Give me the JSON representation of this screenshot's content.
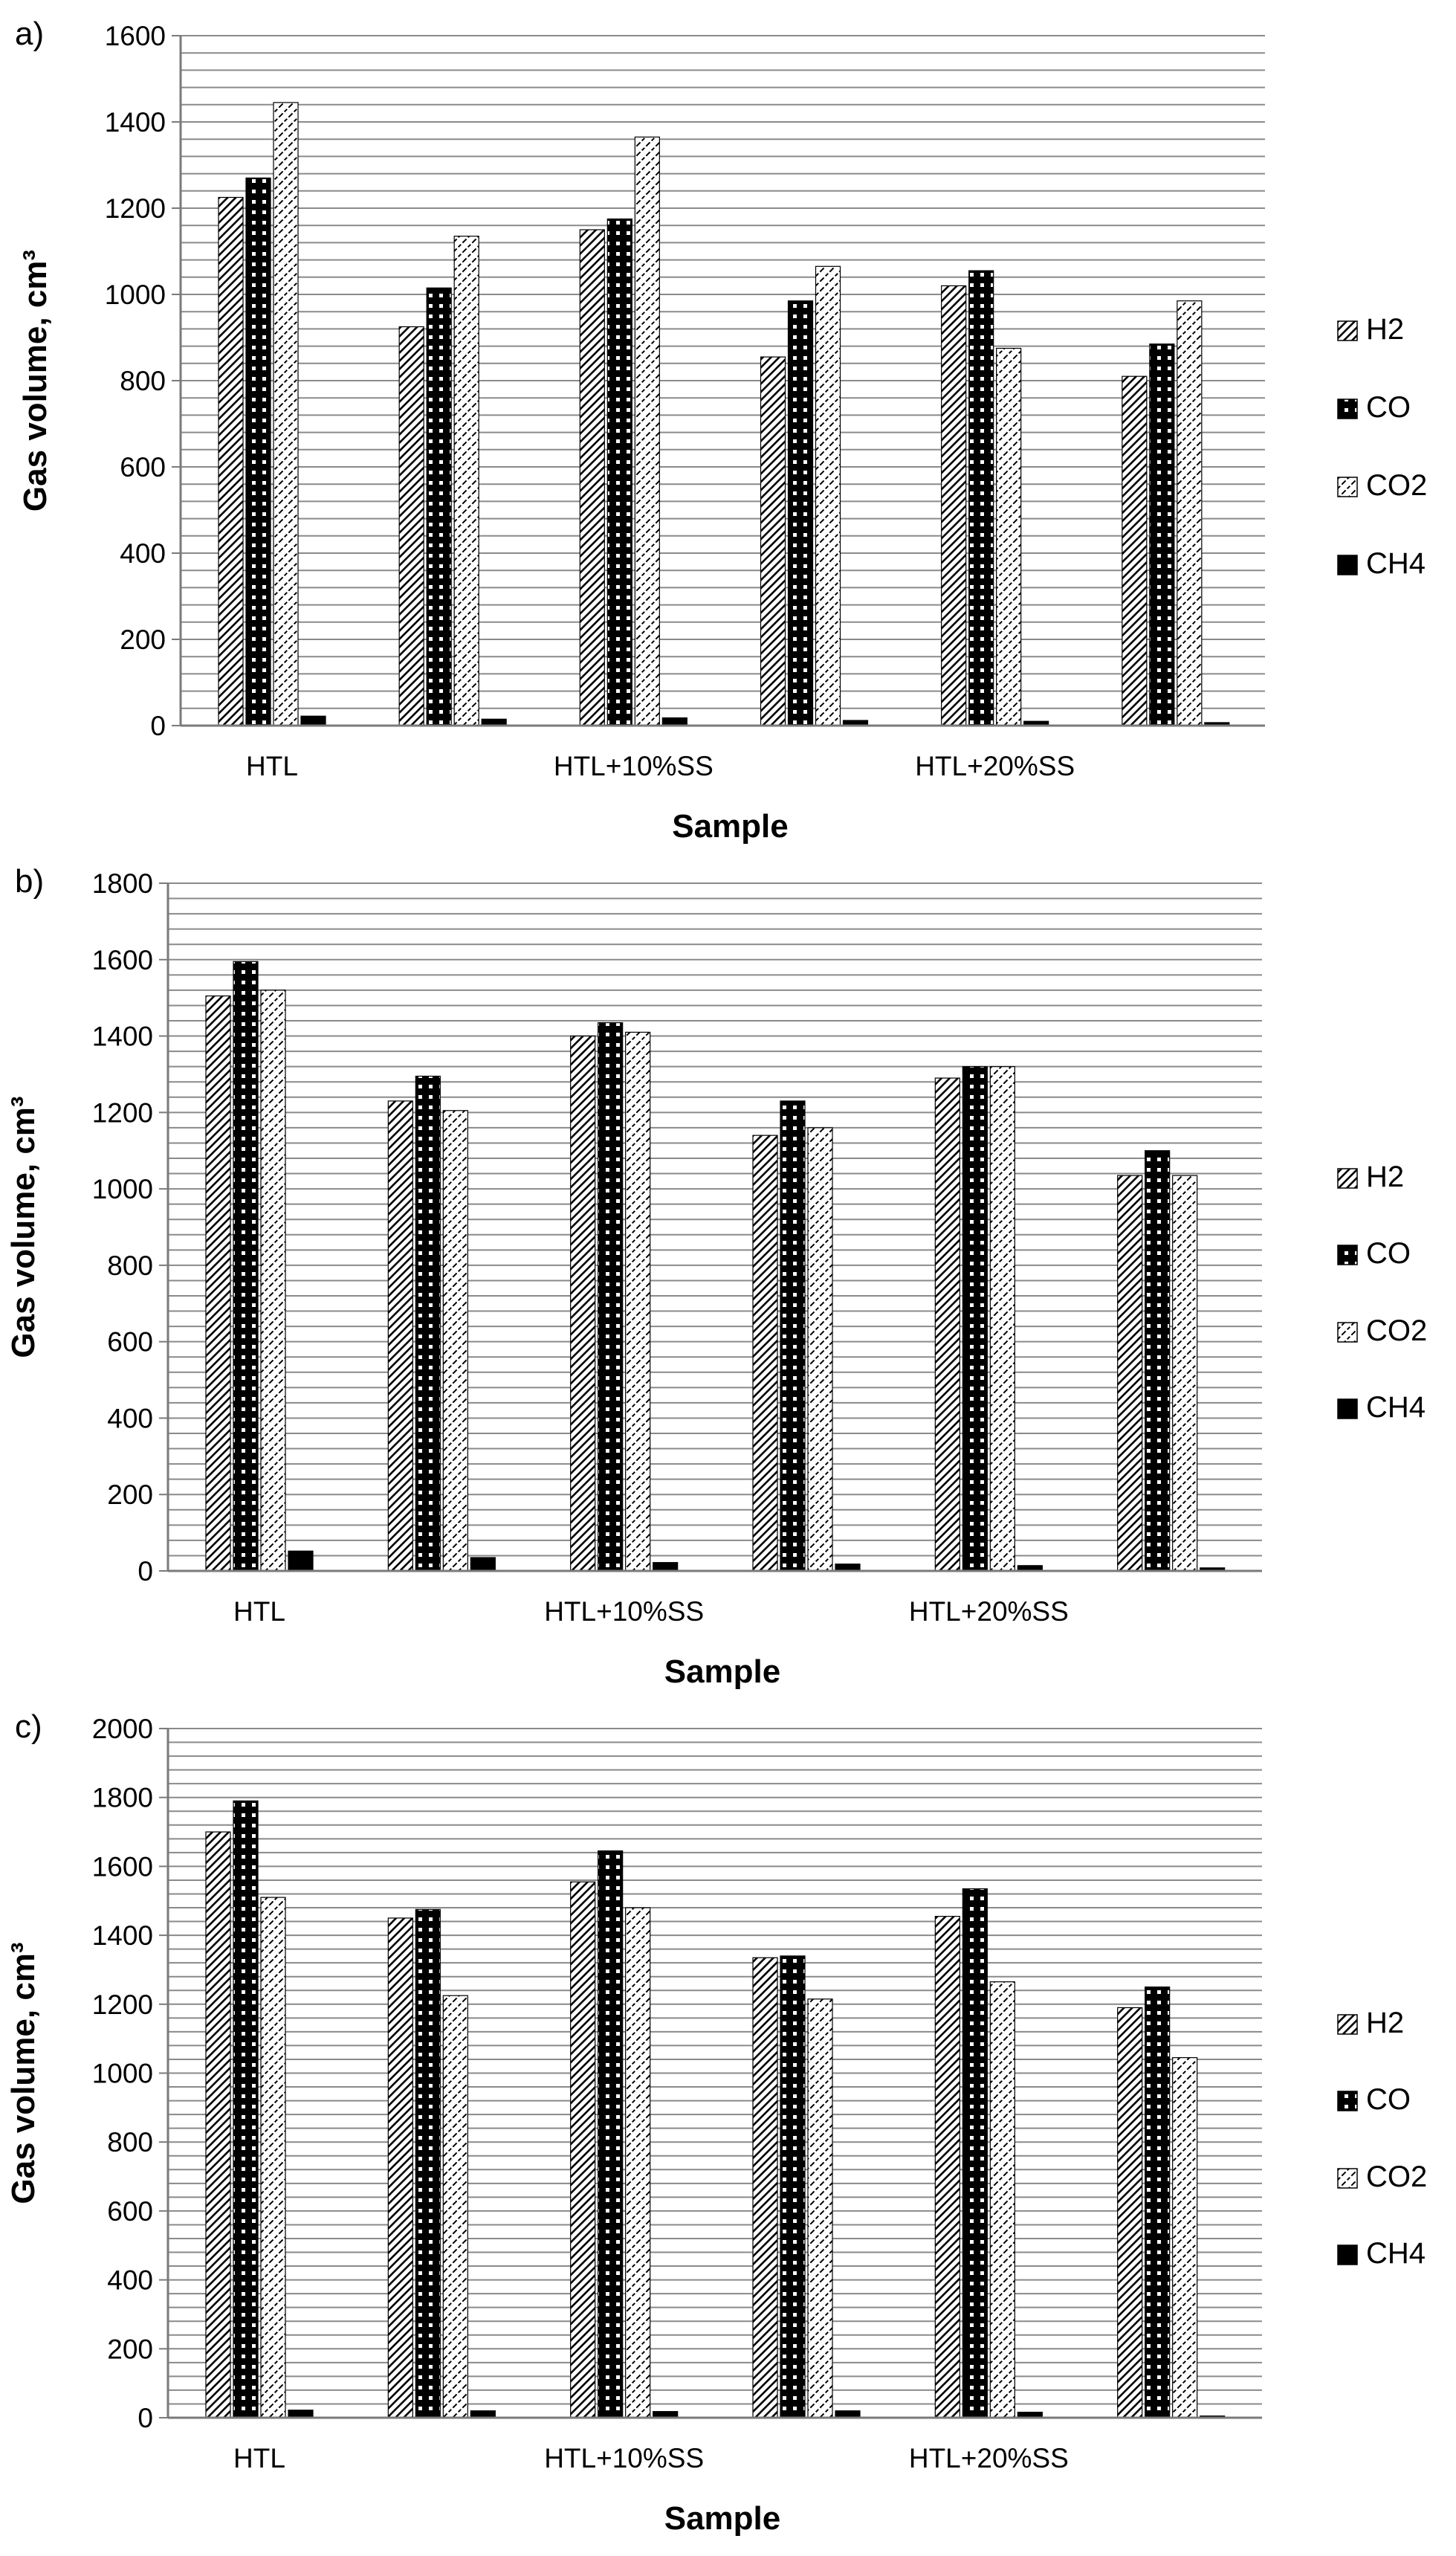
{
  "colors": {
    "grid": "#8a8a8a",
    "axis": "#7a7a7a",
    "ink": "#000000",
    "background": "#ffffff"
  },
  "chart_data": [
    {
      "panel": "a)",
      "type": "bar",
      "xlabel": "Sample",
      "ylabel": "Gas volume, cm³",
      "ylim": [
        0,
        1600
      ],
      "yticks": [
        0,
        200,
        400,
        600,
        800,
        1000,
        1200,
        1400,
        1600
      ],
      "minor_step": 40,
      "groups": 6,
      "category_labels": [
        {
          "group": 0,
          "text": "HTL"
        },
        {
          "group": 2,
          "text": "HTL+10%SS"
        },
        {
          "group": 4,
          "text": "HTL+20%SS"
        }
      ],
      "series": [
        {
          "name": "H2",
          "pattern": "h2",
          "values": [
            1225,
            925,
            1150,
            855,
            1020,
            810
          ]
        },
        {
          "name": "CO",
          "pattern": "co",
          "values": [
            1270,
            1015,
            1175,
            985,
            1055,
            885
          ]
        },
        {
          "name": "CO2",
          "pattern": "co2",
          "values": [
            1445,
            1135,
            1365,
            1065,
            875,
            985
          ]
        },
        {
          "name": "CH4",
          "pattern": "ch4",
          "values": [
            22,
            15,
            18,
            12,
            10,
            7
          ]
        }
      ]
    },
    {
      "panel": "b)",
      "type": "bar",
      "xlabel": "Sample",
      "ylabel": "Gas volume, cm³",
      "ylim": [
        0,
        1800
      ],
      "yticks": [
        0,
        200,
        400,
        600,
        800,
        1000,
        1200,
        1400,
        1600,
        1800
      ],
      "minor_step": 40,
      "groups": 6,
      "category_labels": [
        {
          "group": 0,
          "text": "HTL"
        },
        {
          "group": 2,
          "text": "HTL+10%SS"
        },
        {
          "group": 4,
          "text": "HTL+20%SS"
        }
      ],
      "series": [
        {
          "name": "H2",
          "pattern": "h2",
          "values": [
            1505,
            1230,
            1400,
            1140,
            1290,
            1035
          ]
        },
        {
          "name": "CO",
          "pattern": "co",
          "values": [
            1595,
            1295,
            1435,
            1230,
            1320,
            1100
          ]
        },
        {
          "name": "CO2",
          "pattern": "co2",
          "values": [
            1520,
            1205,
            1410,
            1160,
            1320,
            1035
          ]
        },
        {
          "name": "CH4",
          "pattern": "ch4",
          "values": [
            52,
            35,
            22,
            18,
            14,
            8
          ]
        }
      ]
    },
    {
      "panel": "c)",
      "type": "bar",
      "xlabel": "Sample",
      "ylabel": "Gas volume, cm³",
      "ylim": [
        0,
        2000
      ],
      "yticks": [
        0,
        200,
        400,
        600,
        800,
        1000,
        1200,
        1400,
        1600,
        1800,
        2000
      ],
      "minor_step": 40,
      "groups": 6,
      "category_labels": [
        {
          "group": 0,
          "text": "HTL"
        },
        {
          "group": 2,
          "text": "HTL+10%SS"
        },
        {
          "group": 4,
          "text": "HTL+20%SS"
        }
      ],
      "series": [
        {
          "name": "H2",
          "pattern": "h2",
          "values": [
            1700,
            1450,
            1555,
            1335,
            1455,
            1190
          ]
        },
        {
          "name": "CO",
          "pattern": "co",
          "values": [
            1790,
            1475,
            1645,
            1340,
            1535,
            1250
          ]
        },
        {
          "name": "CO2",
          "pattern": "co2",
          "values": [
            1510,
            1225,
            1480,
            1215,
            1265,
            1045
          ]
        },
        {
          "name": "CH4",
          "pattern": "ch4",
          "values": [
            22,
            20,
            18,
            20,
            16,
            5
          ]
        }
      ]
    }
  ]
}
